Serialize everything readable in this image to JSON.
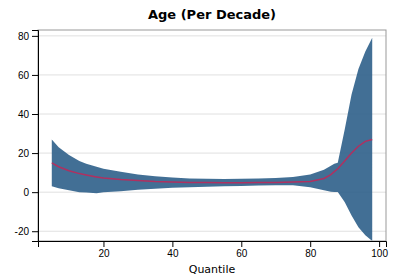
{
  "chart_data": {
    "type": "line",
    "title": "Age (Per Decade)",
    "xlabel": "Quantile",
    "x": [
      5,
      7,
      10,
      13,
      15,
      18,
      20,
      25,
      30,
      35,
      40,
      45,
      50,
      55,
      60,
      65,
      70,
      75,
      80,
      84,
      86,
      87,
      88,
      90,
      92,
      94,
      96,
      98
    ],
    "series": [
      {
        "type": "band",
        "color": "#2e5f8a",
        "lower": [
          3.0,
          2.0,
          1.0,
          0.0,
          -0.2,
          -0.5,
          0.0,
          0.5,
          1.2,
          1.8,
          2.2,
          2.5,
          2.8,
          3.0,
          3.2,
          3.4,
          3.5,
          3.5,
          2.5,
          1.0,
          0.2,
          0.1,
          0.1,
          -5.0,
          -12.0,
          -18.0,
          -22.0,
          -25.0
        ],
        "upper": [
          27.0,
          23.0,
          19.0,
          16.0,
          14.5,
          13.0,
          12.0,
          10.5,
          9.0,
          8.2,
          7.5,
          7.0,
          6.8,
          6.7,
          6.8,
          7.0,
          7.3,
          7.8,
          9.0,
          11.5,
          13.5,
          14.5,
          15.0,
          32.0,
          50.0,
          63.0,
          72.0,
          79.0
        ]
      },
      {
        "type": "line",
        "color": "#b03060",
        "values": [
          15.0,
          13.0,
          11.0,
          9.5,
          8.8,
          7.8,
          7.2,
          6.5,
          6.0,
          5.5,
          5.2,
          5.0,
          4.9,
          4.8,
          4.8,
          4.9,
          5.0,
          5.2,
          5.5,
          7.0,
          9.0,
          10.5,
          12.0,
          16.0,
          20.0,
          23.5,
          26.0,
          27.0
        ]
      }
    ],
    "xlim": [
      1,
      102
    ],
    "ylim": [
      -25,
      83
    ],
    "xticks": [
      20,
      40,
      60,
      80,
      100
    ],
    "yticks": [
      -20,
      0,
      20,
      40,
      60,
      80
    ],
    "grid": "y"
  }
}
